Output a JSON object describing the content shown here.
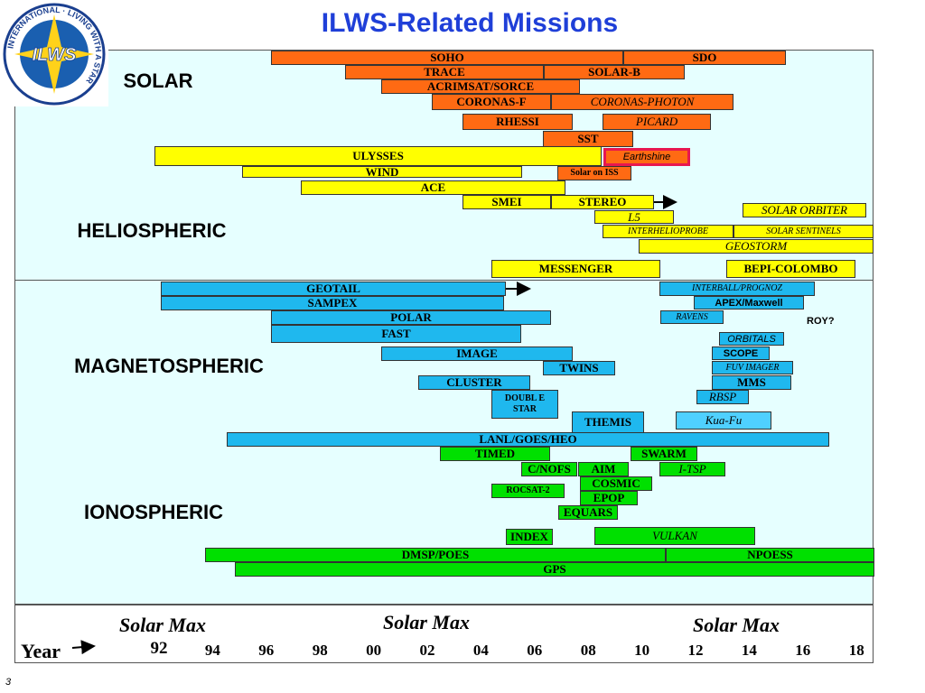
{
  "title": "ILWS-Related Missions",
  "logo": {
    "ring": "INTERNATIONAL · LIVING WITH A STAR",
    "center": "ILWS"
  },
  "sections": [
    "SOLAR",
    "HELIOSPHERIC",
    "MAGNETOSPHERIC",
    "IONOSPHERIC"
  ],
  "missions": [
    "SOHO",
    "SDO",
    "TRACE",
    "SOLAR-B",
    "ACRIMSAT/SORCE",
    "CORONAS-F",
    "CORONAS-PHOTON",
    "RHESSI",
    "PICARD",
    "SST",
    "ULYSSES",
    "Earthshine",
    "WIND",
    "Solar on ISS",
    "ACE",
    "SMEI",
    "STEREO",
    "SOLAR ORBITER",
    "L5",
    "INTERHELIOPROBE",
    "SOLAR SENTINELS",
    "GEOSTORM",
    "MESSENGER",
    "BEPI-COLOMBO",
    "GEOTAIL",
    "SAMPEX",
    "INTERBALL/PROGNOZ",
    "APEX/Maxwell",
    "POLAR",
    "RAVENS",
    "FAST",
    "ORBITALS",
    "IMAGE",
    "SCOPE",
    "TWINS",
    "FUV IMAGER",
    "CLUSTER",
    "MMS",
    "DOUBL E STAR",
    "RBSP",
    "THEMIS",
    "Kua-Fu",
    "LANL/GOES/HEO",
    "TIMED",
    "SWARM",
    "C/NOFS",
    "AIM",
    "I-TSP",
    "COSMIC",
    "ROCSAT-2",
    "EPOP",
    "EQUARS",
    "INDEX",
    "VULKAN",
    "DMSP/POES",
    "NPOESS",
    "GPS"
  ],
  "note": "ROY?",
  "solar_max": [
    "Solar Max",
    "Solar Max",
    "Solar Max"
  ],
  "axis": {
    "label": "Year",
    "years": [
      "92",
      "94",
      "96",
      "98",
      "00",
      "02",
      "04",
      "06",
      "08",
      "10",
      "12",
      "14",
      "16",
      "18"
    ]
  },
  "page_number": "3"
}
